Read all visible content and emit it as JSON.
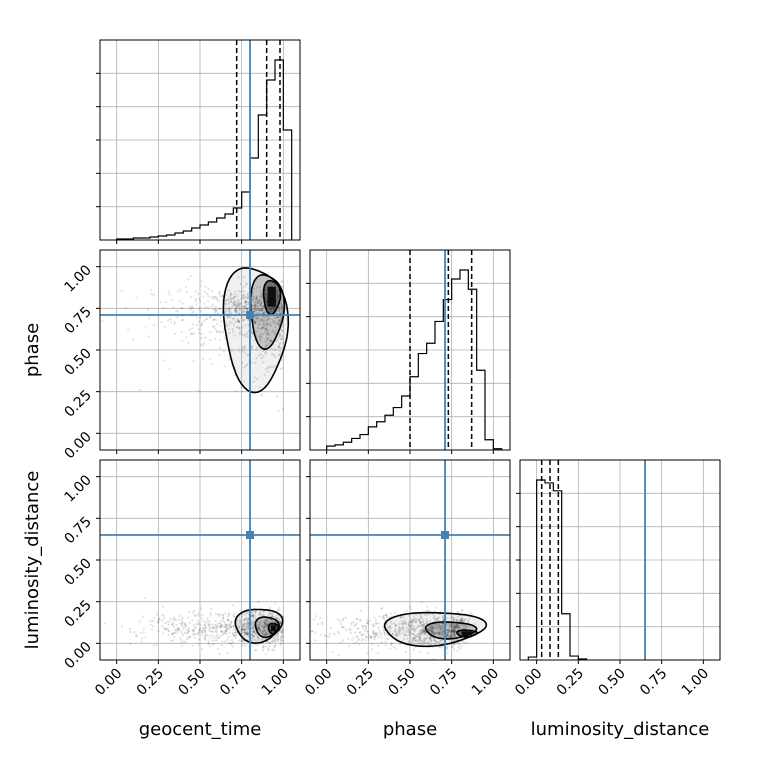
{
  "chart_data": {
    "type": "corner",
    "parameters": [
      "geocent_time",
      "phase",
      "luminosity_distance"
    ],
    "axis_range": [
      -0.1,
      1.1
    ],
    "ticks": [
      "0.00",
      "0.25",
      "0.50",
      "0.75",
      "1.00"
    ],
    "truths": {
      "geocent_time": 0.8,
      "phase": 0.71,
      "luminosity_distance": 0.65
    },
    "quantiles": {
      "geocent_time": [
        0.72,
        0.9,
        0.98
      ],
      "phase": [
        0.5,
        0.73,
        0.87
      ],
      "luminosity_distance": [
        0.03,
        0.08,
        0.13
      ]
    },
    "marginals": {
      "geocent_time": {
        "bin_edges": [
          0.0,
          0.05,
          0.1,
          0.15,
          0.2,
          0.25,
          0.3,
          0.35,
          0.4,
          0.45,
          0.5,
          0.55,
          0.6,
          0.65,
          0.7,
          0.75,
          0.8,
          0.85,
          0.9,
          0.95,
          1.0,
          1.05
        ],
        "counts": [
          1,
          1,
          2,
          2,
          3,
          4,
          5,
          7,
          9,
          12,
          15,
          18,
          22,
          26,
          32,
          48,
          82,
          125,
          160,
          180,
          110
        ]
      },
      "phase": {
        "bin_edges": [
          0.0,
          0.05,
          0.1,
          0.15,
          0.2,
          0.25,
          0.3,
          0.35,
          0.4,
          0.45,
          0.5,
          0.55,
          0.6,
          0.65,
          0.7,
          0.75,
          0.8,
          0.85,
          0.9,
          0.95,
          1.0,
          1.05
        ],
        "counts": [
          3,
          4,
          6,
          9,
          12,
          18,
          22,
          27,
          33,
          42,
          57,
          75,
          83,
          100,
          117,
          133,
          140,
          125,
          62,
          8,
          1
        ]
      },
      "luminosity_distance": {
        "bin_edges": [
          -0.05,
          0.0,
          0.05,
          0.1,
          0.15,
          0.2,
          0.25,
          0.3
        ],
        "counts": [
          3,
          183,
          180,
          172,
          47,
          4,
          1
        ]
      }
    },
    "joint": [
      {
        "x": "geocent_time",
        "y": "phase",
        "density_center": [
          0.93,
          0.83
        ],
        "contour_levels": 3
      },
      {
        "x": "geocent_time",
        "y": "luminosity_distance",
        "density_center": [
          0.94,
          0.09
        ],
        "contour_levels": 3
      },
      {
        "x": "phase",
        "y": "luminosity_distance",
        "density_center": [
          0.84,
          0.06
        ],
        "contour_levels": 3
      }
    ]
  }
}
